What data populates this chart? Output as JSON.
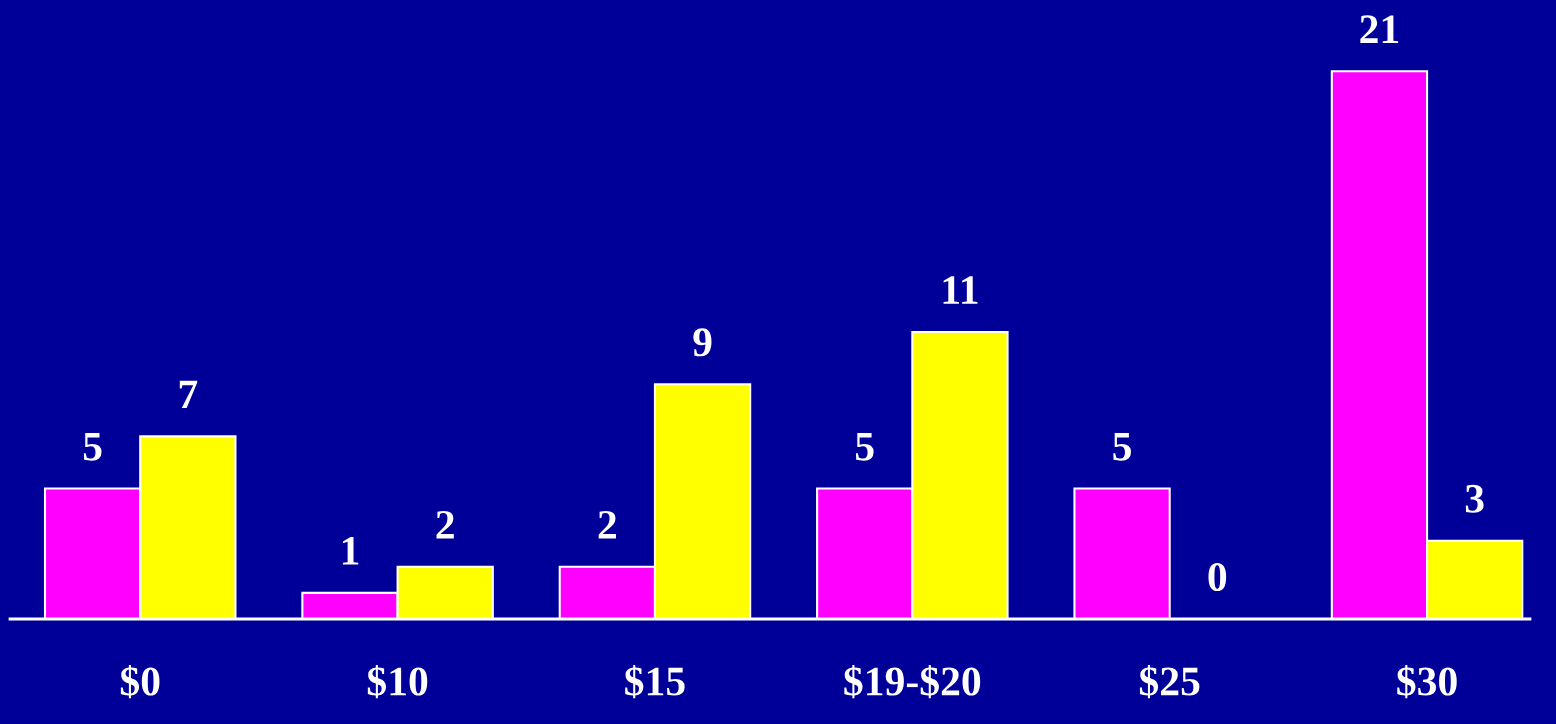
{
  "chart_data": {
    "type": "bar",
    "categories": [
      "$0",
      "$10",
      "$15",
      "$19-$20",
      "$25",
      "$30"
    ],
    "series": [
      {
        "color": "#ff00ff",
        "values": [
          5,
          1,
          2,
          5,
          5,
          21
        ]
      },
      {
        "color": "#ffff00",
        "values": [
          7,
          2,
          9,
          11,
          0,
          3
        ]
      }
    ],
    "data_labels": true,
    "grid": false,
    "legend": false
  }
}
